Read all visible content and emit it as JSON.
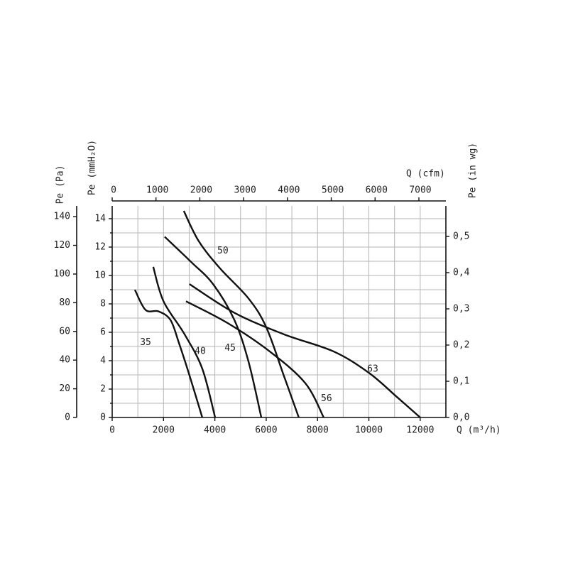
{
  "chart_data": {
    "type": "line",
    "xlabel": "Q (m³/h)",
    "x2label": "Q (cfm)",
    "ylabel": "Pe (Pa)",
    "y2label": "Pe (mmH₂O)",
    "y3label": "Pe (in wg)",
    "xlim": [
      0,
      13000
    ],
    "xticks": [
      0,
      2000,
      4000,
      6000,
      8000,
      10000,
      12000
    ],
    "x_minor_ticks": [
      1000,
      3000,
      5000,
      7000,
      9000,
      11000
    ],
    "x2lim": [
      0,
      7616
    ],
    "x2ticks": [
      0,
      1000,
      2000,
      3000,
      4000,
      5000,
      6000,
      7000
    ],
    "ylim": [
      0,
      147.5
    ],
    "yticks": [
      0,
      20,
      40,
      60,
      80,
      100,
      120,
      140
    ],
    "y2lim": [
      0,
      14.9
    ],
    "y2ticks": [
      0,
      2,
      4,
      6,
      8,
      10,
      12,
      14
    ],
    "y2_minor_ticks": [
      1,
      3,
      5,
      7,
      9,
      11,
      13
    ],
    "y3lim": [
      0,
      0.5843
    ],
    "y3ticks": [
      {
        "value": 0,
        "label": "0,0"
      },
      {
        "value": 0.1,
        "label": "0,1"
      },
      {
        "value": 0.2,
        "label": "0,2"
      },
      {
        "value": 0.3,
        "label": "0,3"
      },
      {
        "value": 0.4,
        "label": "0,4"
      },
      {
        "value": 0.5,
        "label": "0,5"
      }
    ],
    "grid": true,
    "series": [
      {
        "name": "35",
        "color": "#111111",
        "x": [
          885,
          1300,
          1800,
          2270,
          2600,
          3000,
          3510
        ],
        "values": [
          89,
          75,
          74,
          68,
          52,
          30,
          0
        ]
      },
      {
        "name": "40",
        "color": "#111111",
        "x": [
          1600,
          2000,
          2820,
          3510,
          4010
        ],
        "values": [
          105,
          81,
          58,
          34,
          0
        ]
      },
      {
        "name": "45",
        "color": "#111111",
        "x": [
          2045,
          3100,
          3930,
          4760,
          5310,
          5810
        ],
        "values": [
          126,
          108,
          93,
          68,
          39,
          0
        ]
      },
      {
        "name": "50",
        "color": "#111111",
        "x": [
          2790,
          3370,
          4200,
          5310,
          6000,
          6690,
          7270
        ],
        "values": [
          144,
          123,
          104,
          83,
          63,
          29,
          0
        ]
      },
      {
        "name": "56",
        "color": "#111111",
        "x": [
          2875,
          4480,
          6140,
          7520,
          8240
        ],
        "values": [
          81,
          66,
          46,
          24,
          0
        ]
      },
      {
        "name": "63",
        "color": "#111111",
        "x": [
          3010,
          4760,
          6690,
          8630,
          10010,
          11110,
          12000
        ],
        "values": [
          93,
          73,
          58,
          46,
          31,
          14,
          0
        ]
      }
    ]
  }
}
